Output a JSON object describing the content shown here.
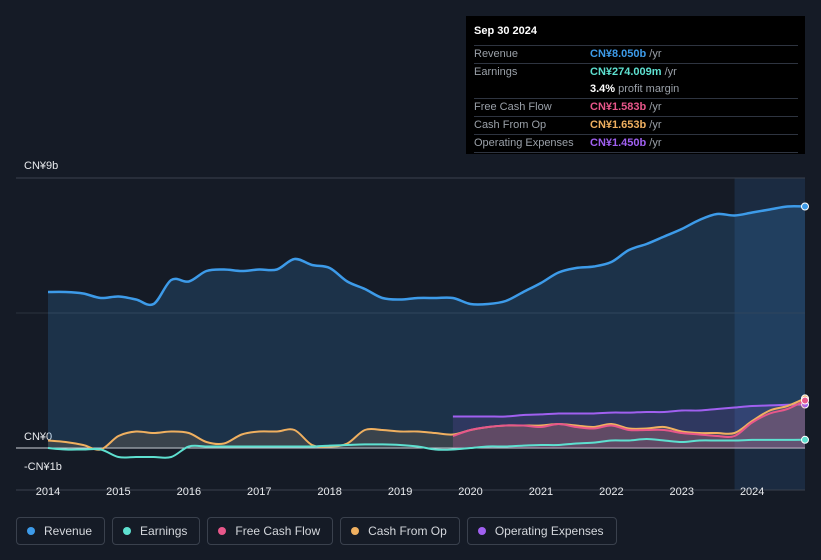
{
  "tooltip": {
    "date": "Sep 30 2024",
    "rows": [
      {
        "label": "Revenue",
        "value": "CN¥8.050b",
        "unit": "/yr",
        "color": "#3d9be9"
      },
      {
        "label": "Earnings",
        "value": "CN¥274.009m",
        "unit": "/yr",
        "color": "#5ee0d0"
      },
      {
        "label": "Free Cash Flow",
        "value": "CN¥1.583b",
        "unit": "/yr",
        "color": "#e8578a"
      },
      {
        "label": "Cash From Op",
        "value": "CN¥1.653b",
        "unit": "/yr",
        "color": "#f0b060"
      },
      {
        "label": "Operating Expenses",
        "value": "CN¥1.450b",
        "unit": "/yr",
        "color": "#a060f0"
      }
    ],
    "margin_value": "3.4%",
    "margin_text": "profit margin"
  },
  "legend": [
    {
      "label": "Revenue",
      "color": "#3d9be9"
    },
    {
      "label": "Earnings",
      "color": "#5ee0d0"
    },
    {
      "label": "Free Cash Flow",
      "color": "#e8578a"
    },
    {
      "label": "Cash From Op",
      "color": "#f0b060"
    },
    {
      "label": "Operating Expenses",
      "color": "#a060f0"
    }
  ],
  "chart_data": {
    "type": "line",
    "title": "",
    "ylim": [
      -1,
      9
    ],
    "y_tick_labels": [
      {
        "value": 9,
        "label": "CN¥9b"
      },
      {
        "value": 0,
        "label": "CN¥0"
      },
      {
        "value": -1,
        "label": "-CN¥1b"
      }
    ],
    "x_tick_labels": [
      {
        "value": 2014,
        "label": "2014"
      },
      {
        "value": 2015,
        "label": "2015"
      },
      {
        "value": 2016,
        "label": "2016"
      },
      {
        "value": 2017,
        "label": "2017"
      },
      {
        "value": 2018,
        "label": "2018"
      },
      {
        "value": 2019,
        "label": "2019"
      },
      {
        "value": 2020,
        "label": "2020"
      },
      {
        "value": 2021,
        "label": "2021"
      },
      {
        "value": 2022,
        "label": "2022"
      },
      {
        "value": 2023,
        "label": "2023"
      },
      {
        "value": 2024,
        "label": "2024"
      }
    ],
    "xlim": [
      2013.5,
      2024.75
    ],
    "highlight_from": 2023.75,
    "series": [
      {
        "name": "Revenue",
        "color": "#3d9be9",
        "fill": true,
        "x": [
          2014.0,
          2014.25,
          2014.5,
          2014.75,
          2015.0,
          2015.25,
          2015.5,
          2015.75,
          2016.0,
          2016.25,
          2016.5,
          2016.75,
          2017.0,
          2017.25,
          2017.5,
          2017.75,
          2018.0,
          2018.25,
          2018.5,
          2018.75,
          2019.0,
          2019.25,
          2019.5,
          2019.75,
          2020.0,
          2020.25,
          2020.5,
          2020.75,
          2021.0,
          2021.25,
          2021.5,
          2021.75,
          2022.0,
          2022.25,
          2022.5,
          2022.75,
          2023.0,
          2023.25,
          2023.5,
          2023.75,
          2024.0,
          2024.25,
          2024.5,
          2024.75
        ],
        "values": [
          5.2,
          5.2,
          5.15,
          5.0,
          5.05,
          4.95,
          4.8,
          5.6,
          5.55,
          5.9,
          5.95,
          5.9,
          5.95,
          5.95,
          6.3,
          6.1,
          6.0,
          5.55,
          5.3,
          5.0,
          4.95,
          5.0,
          5.0,
          5.0,
          4.8,
          4.8,
          4.9,
          5.2,
          5.5,
          5.85,
          6.0,
          6.05,
          6.2,
          6.6,
          6.8,
          7.05,
          7.3,
          7.6,
          7.8,
          7.75,
          7.85,
          7.95,
          8.05,
          8.05
        ]
      },
      {
        "name": "Earnings",
        "color": "#5ee0d0",
        "fill": false,
        "x": [
          2014.0,
          2014.25,
          2014.5,
          2014.75,
          2015.0,
          2015.25,
          2015.5,
          2015.75,
          2016.0,
          2016.25,
          2016.5,
          2016.75,
          2017.0,
          2017.25,
          2017.5,
          2017.75,
          2018.0,
          2018.25,
          2018.5,
          2018.75,
          2019.0,
          2019.25,
          2019.5,
          2019.75,
          2020.0,
          2020.25,
          2020.5,
          2020.75,
          2021.0,
          2021.25,
          2021.5,
          2021.75,
          2022.0,
          2022.25,
          2022.5,
          2022.75,
          2023.0,
          2023.25,
          2023.5,
          2023.75,
          2024.0,
          2024.25,
          2024.5,
          2024.75
        ],
        "values": [
          0.0,
          -0.05,
          -0.05,
          -0.05,
          -0.3,
          -0.3,
          -0.3,
          -0.3,
          0.05,
          0.05,
          0.05,
          0.05,
          0.05,
          0.05,
          0.05,
          0.05,
          0.08,
          0.1,
          0.12,
          0.12,
          0.1,
          0.05,
          -0.05,
          -0.05,
          0.0,
          0.05,
          0.05,
          0.08,
          0.1,
          0.1,
          0.15,
          0.18,
          0.25,
          0.25,
          0.3,
          0.25,
          0.2,
          0.25,
          0.25,
          0.25,
          0.27,
          0.27,
          0.27,
          0.274
        ]
      },
      {
        "name": "Free Cash Flow",
        "color": "#e8578a",
        "fill": true,
        "x": [
          2019.75,
          2020.0,
          2020.25,
          2020.5,
          2020.75,
          2021.0,
          2021.25,
          2021.5,
          2021.75,
          2022.0,
          2022.25,
          2022.5,
          2022.75,
          2023.0,
          2023.25,
          2023.5,
          2023.75,
          2024.0,
          2024.25,
          2024.5,
          2024.75
        ],
        "values": [
          0.4,
          0.6,
          0.7,
          0.75,
          0.75,
          0.7,
          0.8,
          0.7,
          0.65,
          0.75,
          0.6,
          0.6,
          0.6,
          0.5,
          0.45,
          0.4,
          0.4,
          0.85,
          1.15,
          1.3,
          1.583
        ]
      },
      {
        "name": "Cash From Op",
        "color": "#f0b060",
        "fill": true,
        "x": [
          2014.0,
          2014.25,
          2014.5,
          2014.75,
          2015.0,
          2015.25,
          2015.5,
          2015.75,
          2016.0,
          2016.25,
          2016.5,
          2016.75,
          2017.0,
          2017.25,
          2017.5,
          2017.75,
          2018.0,
          2018.25,
          2018.5,
          2018.75,
          2019.0,
          2019.25,
          2019.5,
          2019.75,
          2020.0,
          2020.25,
          2020.5,
          2020.75,
          2021.0,
          2021.25,
          2021.5,
          2021.75,
          2022.0,
          2022.25,
          2022.5,
          2022.75,
          2023.0,
          2023.25,
          2023.5,
          2023.75,
          2024.0,
          2024.25,
          2024.5,
          2024.75
        ],
        "values": [
          0.25,
          0.2,
          0.1,
          -0.05,
          0.4,
          0.55,
          0.5,
          0.55,
          0.5,
          0.2,
          0.15,
          0.45,
          0.55,
          0.55,
          0.6,
          0.1,
          0.05,
          0.15,
          0.6,
          0.6,
          0.55,
          0.55,
          0.5,
          0.45,
          0.6,
          0.7,
          0.75,
          0.75,
          0.75,
          0.8,
          0.75,
          0.7,
          0.8,
          0.65,
          0.65,
          0.7,
          0.55,
          0.5,
          0.5,
          0.5,
          0.9,
          1.25,
          1.4,
          1.653
        ]
      },
      {
        "name": "Operating Expenses",
        "color": "#a060f0",
        "fill": true,
        "x": [
          2019.75,
          2020.0,
          2020.25,
          2020.5,
          2020.75,
          2021.0,
          2021.25,
          2021.5,
          2021.75,
          2022.0,
          2022.25,
          2022.5,
          2022.75,
          2023.0,
          2023.25,
          2023.5,
          2023.75,
          2024.0,
          2024.25,
          2024.5,
          2024.75
        ],
        "values": [
          1.05,
          1.05,
          1.05,
          1.05,
          1.1,
          1.12,
          1.15,
          1.15,
          1.15,
          1.18,
          1.18,
          1.2,
          1.2,
          1.25,
          1.25,
          1.3,
          1.35,
          1.4,
          1.42,
          1.44,
          1.45
        ]
      }
    ]
  }
}
